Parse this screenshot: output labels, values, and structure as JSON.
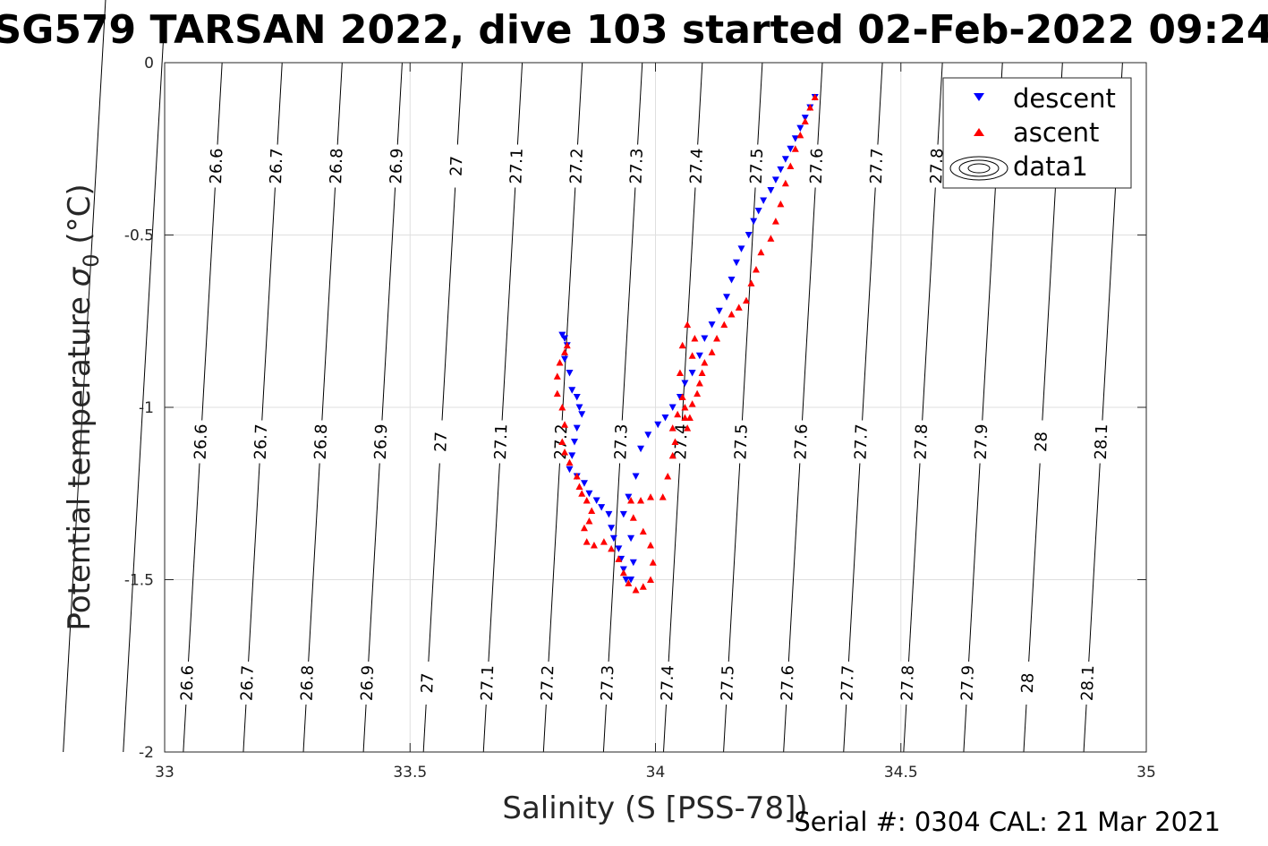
{
  "chart_data": {
    "type": "scatter",
    "title": "SG579 TARSAN 2022, dive 103 started 02-Feb-2022 09:24",
    "xlabel": "Salinity (S [PSS-78])",
    "ylabel_main": "Potential temperature ",
    "ylabel_sigma": "σ",
    "ylabel_sub": "0",
    "ylabel_unit": " (°C)",
    "xlim": [
      33,
      35
    ],
    "ylim": [
      -2,
      0
    ],
    "xticks": [
      33,
      33.5,
      34,
      34.5,
      35
    ],
    "xtick_labels": [
      "33",
      "33.5",
      "34",
      "34.5",
      "35"
    ],
    "yticks": [
      0,
      -0.5,
      -1,
      -1.5,
      -2
    ],
    "ytick_labels": [
      "0",
      "-0.5",
      "-1",
      "-1.5",
      "-2"
    ],
    "grid": true,
    "legend_position": "top-right",
    "legend": [
      "descent",
      "ascent",
      "data1"
    ],
    "footer": "Serial #: 0304  CAL: 21 Mar 2021",
    "contours": {
      "levels": [
        26.6,
        26.7,
        26.8,
        26.9,
        27.0,
        27.1,
        27.2,
        27.3,
        27.4,
        27.5,
        27.6,
        27.7,
        27.8,
        27.9,
        28.0,
        28.1
      ],
      "labels": [
        "26.6",
        "26.7",
        "26.8",
        "26.9",
        "27",
        "27.1",
        "27.2",
        "27.3",
        "27.4",
        "27.5",
        "27.6",
        "27.7",
        "27.8",
        "27.9",
        "28",
        "28.1"
      ],
      "label_temperatures": [
        -0.3,
        -1.1,
        -1.8
      ]
    },
    "series": [
      {
        "name": "descent",
        "color": "#0000ff",
        "marker": "triangle-down",
        "points": [
          [
            33.81,
            -0.79
          ],
          [
            33.815,
            -0.8
          ],
          [
            33.82,
            -0.82
          ],
          [
            33.815,
            -0.86
          ],
          [
            33.825,
            -0.9
          ],
          [
            33.83,
            -0.95
          ],
          [
            33.84,
            -0.97
          ],
          [
            33.845,
            -1.0
          ],
          [
            33.85,
            -1.02
          ],
          [
            33.84,
            -1.06
          ],
          [
            33.835,
            -1.1
          ],
          [
            33.83,
            -1.14
          ],
          [
            33.825,
            -1.18
          ],
          [
            33.84,
            -1.2
          ],
          [
            33.855,
            -1.22
          ],
          [
            33.865,
            -1.25
          ],
          [
            33.88,
            -1.27
          ],
          [
            33.89,
            -1.29
          ],
          [
            33.905,
            -1.31
          ],
          [
            33.91,
            -1.35
          ],
          [
            33.915,
            -1.38
          ],
          [
            33.925,
            -1.41
          ],
          [
            33.93,
            -1.44
          ],
          [
            33.935,
            -1.47
          ],
          [
            33.94,
            -1.5
          ],
          [
            33.95,
            -1.5
          ],
          [
            33.955,
            -1.45
          ],
          [
            33.95,
            -1.38
          ],
          [
            33.935,
            -1.31
          ],
          [
            33.945,
            -1.26
          ],
          [
            33.96,
            -1.2
          ],
          [
            33.97,
            -1.12
          ],
          [
            33.985,
            -1.08
          ],
          [
            34.005,
            -1.05
          ],
          [
            34.02,
            -1.03
          ],
          [
            34.035,
            -1.0
          ],
          [
            34.05,
            -0.97
          ],
          [
            34.06,
            -0.93
          ],
          [
            34.075,
            -0.9
          ],
          [
            34.09,
            -0.85
          ],
          [
            34.1,
            -0.8
          ],
          [
            34.115,
            -0.76
          ],
          [
            34.13,
            -0.72
          ],
          [
            34.145,
            -0.68
          ],
          [
            34.155,
            -0.63
          ],
          [
            34.165,
            -0.58
          ],
          [
            34.175,
            -0.54
          ],
          [
            34.19,
            -0.5
          ],
          [
            34.2,
            -0.46
          ],
          [
            34.21,
            -0.43
          ],
          [
            34.22,
            -0.4
          ],
          [
            34.235,
            -0.37
          ],
          [
            34.245,
            -0.34
          ],
          [
            34.255,
            -0.31
          ],
          [
            34.265,
            -0.28
          ],
          [
            34.275,
            -0.25
          ],
          [
            34.285,
            -0.22
          ],
          [
            34.295,
            -0.19
          ],
          [
            34.305,
            -0.16
          ],
          [
            34.315,
            -0.13
          ],
          [
            34.325,
            -0.1
          ]
        ]
      },
      {
        "name": "ascent",
        "color": "#ff0000",
        "marker": "triangle-up",
        "points": [
          [
            34.325,
            -0.1
          ],
          [
            34.315,
            -0.13
          ],
          [
            34.305,
            -0.17
          ],
          [
            34.295,
            -0.21
          ],
          [
            34.285,
            -0.25
          ],
          [
            34.275,
            -0.3
          ],
          [
            34.265,
            -0.35
          ],
          [
            34.255,
            -0.41
          ],
          [
            34.245,
            -0.46
          ],
          [
            34.235,
            -0.51
          ],
          [
            34.215,
            -0.55
          ],
          [
            34.205,
            -0.6
          ],
          [
            34.195,
            -0.64
          ],
          [
            34.185,
            -0.69
          ],
          [
            34.17,
            -0.71
          ],
          [
            34.155,
            -0.73
          ],
          [
            34.14,
            -0.76
          ],
          [
            34.125,
            -0.8
          ],
          [
            34.115,
            -0.84
          ],
          [
            34.1,
            -0.87
          ],
          [
            34.095,
            -0.9
          ],
          [
            34.09,
            -0.93
          ],
          [
            34.085,
            -0.96
          ],
          [
            34.075,
            -0.99
          ],
          [
            34.07,
            -1.03
          ],
          [
            34.065,
            -1.06
          ],
          [
            34.06,
            -1.03
          ],
          [
            34.055,
            -0.97
          ],
          [
            34.05,
            -0.9
          ],
          [
            34.055,
            -0.82
          ],
          [
            34.065,
            -0.76
          ],
          [
            34.08,
            -0.8
          ],
          [
            34.075,
            -0.85
          ],
          [
            34.06,
            -1.0
          ],
          [
            34.045,
            -1.02
          ],
          [
            34.035,
            -1.06
          ],
          [
            34.04,
            -1.1
          ],
          [
            34.035,
            -1.14
          ],
          [
            34.025,
            -1.2
          ],
          [
            34.015,
            -1.26
          ],
          [
            33.99,
            -1.26
          ],
          [
            33.97,
            -1.27
          ],
          [
            33.95,
            -1.27
          ],
          [
            33.955,
            -1.32
          ],
          [
            33.975,
            -1.36
          ],
          [
            33.99,
            -1.4
          ],
          [
            33.995,
            -1.45
          ],
          [
            33.99,
            -1.5
          ],
          [
            33.975,
            -1.52
          ],
          [
            33.96,
            -1.53
          ],
          [
            33.945,
            -1.51
          ],
          [
            33.935,
            -1.48
          ],
          [
            33.925,
            -1.44
          ],
          [
            33.91,
            -1.41
          ],
          [
            33.895,
            -1.39
          ],
          [
            33.875,
            -1.4
          ],
          [
            33.86,
            -1.39
          ],
          [
            33.855,
            -1.35
          ],
          [
            33.865,
            -1.33
          ],
          [
            33.87,
            -1.3
          ],
          [
            33.86,
            -1.27
          ],
          [
            33.85,
            -1.25
          ],
          [
            33.845,
            -1.23
          ],
          [
            33.84,
            -1.2
          ],
          [
            33.825,
            -1.16
          ],
          [
            33.815,
            -1.13
          ],
          [
            33.81,
            -1.1
          ],
          [
            33.815,
            -1.05
          ],
          [
            33.81,
            -1.0
          ],
          [
            33.8,
            -0.96
          ],
          [
            33.8,
            -0.91
          ],
          [
            33.805,
            -0.87
          ],
          [
            33.815,
            -0.84
          ],
          [
            33.82,
            -0.82
          ]
        ]
      }
    ]
  }
}
